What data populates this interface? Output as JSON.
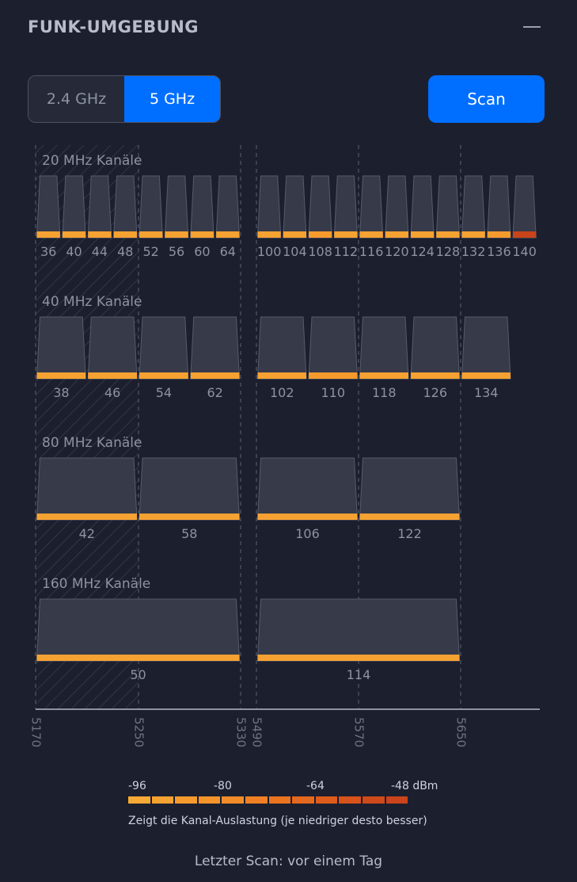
{
  "header": {
    "title": "FUNK-UMGEBUNG"
  },
  "band_toggle": {
    "options": [
      "2.4 GHz",
      "5 GHz"
    ],
    "selected": "5 GHz"
  },
  "scan_button": {
    "label": "Scan"
  },
  "colors": {
    "accent": "#006fff",
    "channel_low": "#f5a020",
    "channel_high": "#d0451b"
  },
  "groups": [
    {
      "label": "20 MHz Kanäle",
      "channels": [
        {
          "ch": "36",
          "level": 0.1
        },
        {
          "ch": "40",
          "level": 0.15
        },
        {
          "ch": "44",
          "level": 0.1
        },
        {
          "ch": "48",
          "level": 0.15
        },
        {
          "ch": "52",
          "level": 0.1
        },
        {
          "ch": "56",
          "level": 0.1
        },
        {
          "ch": "60",
          "level": 0.1
        },
        {
          "ch": "64",
          "level": 0.1
        },
        {
          "ch": "100",
          "level": 0.15
        },
        {
          "ch": "104",
          "level": 0.15
        },
        {
          "ch": "108",
          "level": 0.2
        },
        {
          "ch": "112",
          "level": 0.15
        },
        {
          "ch": "116",
          "level": 0.15
        },
        {
          "ch": "120",
          "level": 0.15
        },
        {
          "ch": "124",
          "level": 0.15
        },
        {
          "ch": "128",
          "level": 0.15
        },
        {
          "ch": "132",
          "level": 0.15
        },
        {
          "ch": "136",
          "level": 0.2
        },
        {
          "ch": "140",
          "level": 0.95
        }
      ]
    },
    {
      "label": "40 MHz Kanäle",
      "channels": [
        {
          "ch": "38",
          "level": 0.1
        },
        {
          "ch": "46",
          "level": 0.15
        },
        {
          "ch": "54",
          "level": 0.1
        },
        {
          "ch": "62",
          "level": 0.1
        },
        {
          "ch": "102",
          "level": 0.15
        },
        {
          "ch": "110",
          "level": 0.2
        },
        {
          "ch": "118",
          "level": 0.15
        },
        {
          "ch": "126",
          "level": 0.15
        },
        {
          "ch": "134",
          "level": 0.15
        }
      ]
    },
    {
      "label": "80 MHz Kanäle",
      "channels": [
        {
          "ch": "42",
          "level": 0.1
        },
        {
          "ch": "58",
          "level": 0.1
        },
        {
          "ch": "106",
          "level": 0.15
        },
        {
          "ch": "122",
          "level": 0.15
        }
      ]
    },
    {
      "label": "160 MHz Kanäle",
      "channels": [
        {
          "ch": "50",
          "level": 0.1
        },
        {
          "ch": "114",
          "level": 0.15
        }
      ]
    }
  ],
  "freq_axis": {
    "ticks": [
      "5170",
      "5250",
      "5330",
      "5490",
      "5570",
      "5650"
    ]
  },
  "legend": {
    "labels": [
      "-96",
      "-80",
      "-64",
      "-48 dBm"
    ],
    "colors": [
      "#f7a936",
      "#f6a232",
      "#f59b2e",
      "#f4942b",
      "#f28c28",
      "#ef8124",
      "#ea7420",
      "#e4681d",
      "#dd5c1c",
      "#d6531b",
      "#cf4a1b",
      "#c9441b"
    ],
    "note": "Zeigt die Kanal-Auslastung (je niedriger desto besser)"
  },
  "footer": {
    "last_scan": "Letzter Scan: vor einem Tag"
  }
}
